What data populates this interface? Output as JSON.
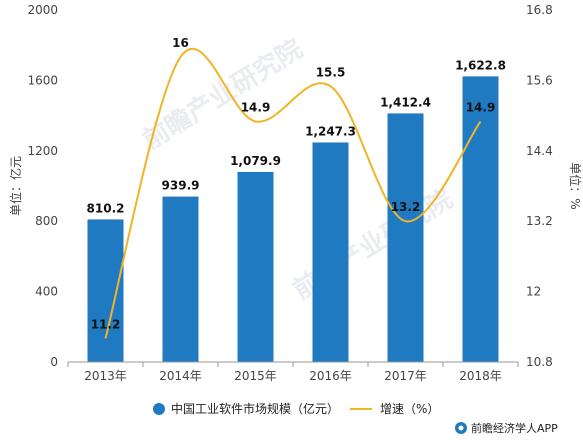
{
  "chart_data": {
    "type": "bar+line",
    "categories": [
      "2013年",
      "2014年",
      "2015年",
      "2016年",
      "2017年",
      "2018年"
    ],
    "series": [
      {
        "name": "中国工业软件市场规模（亿元）",
        "kind": "bar",
        "axis": "left",
        "color": "#1f7ac2",
        "values": [
          810.2,
          939.9,
          1079.9,
          1247.3,
          1412.4,
          1622.8
        ],
        "labels": [
          "810.2",
          "939.9",
          "1,079.9",
          "1,247.3",
          "1,412.4",
          "1,622.8"
        ]
      },
      {
        "name": "增速（%）",
        "kind": "line",
        "axis": "right",
        "color": "#f0b428",
        "values": [
          11.2,
          16,
          14.9,
          15.5,
          13.2,
          14.9
        ],
        "labels": [
          "11.2",
          "16",
          "14.9",
          "15.5",
          "13.2",
          "14.9"
        ]
      }
    ],
    "ylabel_left": "单位：亿元",
    "ylabel_right": "单位：%",
    "ylim_left": [
      0,
      2000
    ],
    "yticks_left": [
      "0",
      "400",
      "800",
      "1200",
      "1600",
      "2000"
    ],
    "ylim_right": [
      10.8,
      16.8
    ],
    "yticks_right": [
      "10.8",
      "12",
      "13.2",
      "14.4",
      "15.6",
      "16.8"
    ],
    "grid": false,
    "legend_position": "bottom"
  },
  "watermark": "前瞻产业研究院",
  "brand": "前瞻经济学人APP"
}
